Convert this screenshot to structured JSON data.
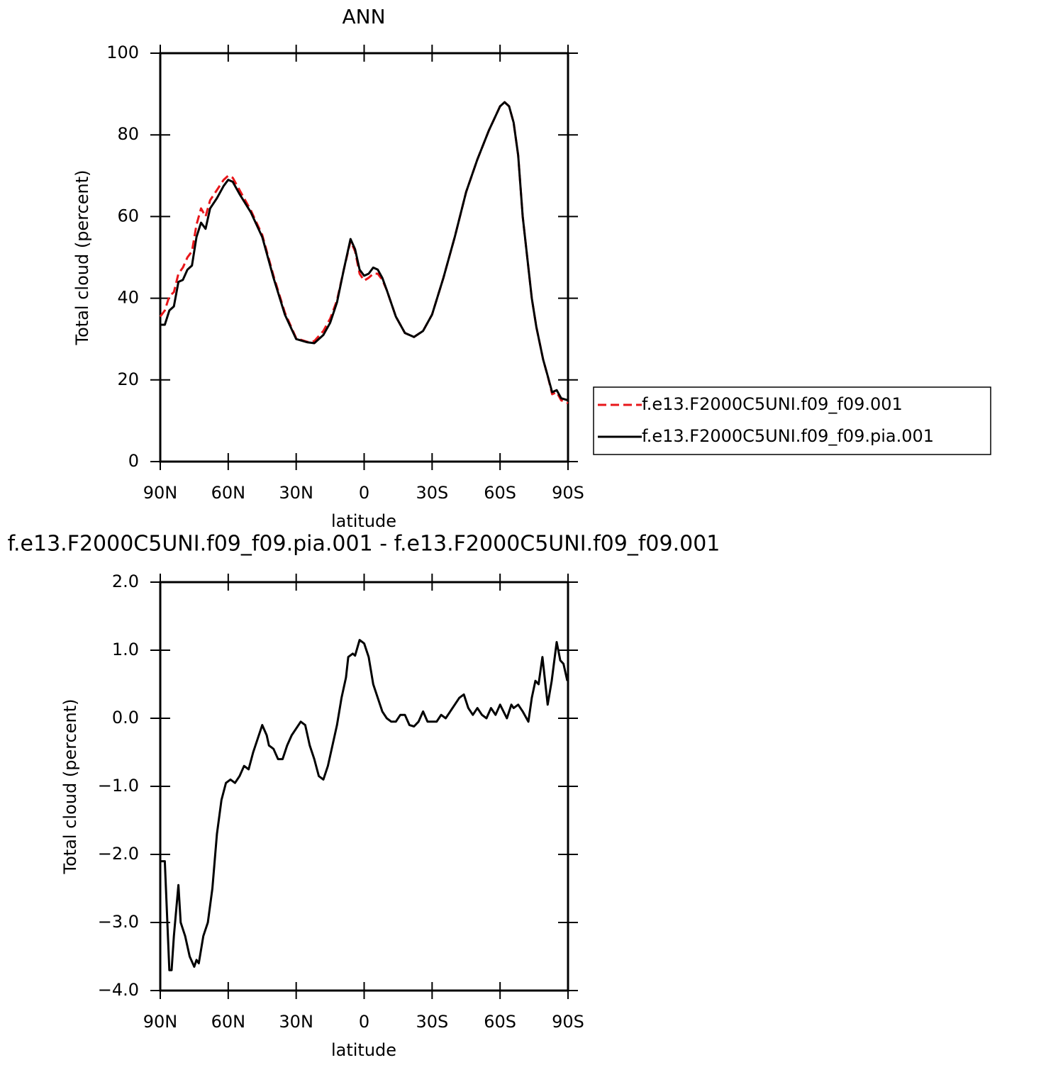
{
  "chart_data": [
    {
      "type": "line",
      "title": "ANN",
      "xlabel": "latitude",
      "ylabel": "Total cloud (percent)",
      "xlim": [
        90,
        -90
      ],
      "ylim": [
        0,
        100
      ],
      "xticks": [
        {
          "value": 90,
          "label": "90N"
        },
        {
          "value": 60,
          "label": "60N"
        },
        {
          "value": 30,
          "label": "30N"
        },
        0,
        {
          "value": -30,
          "label": "30S"
        },
        {
          "value": -60,
          "label": "60S"
        },
        {
          "value": -90,
          "label": "90S"
        }
      ],
      "yticks": [
        0,
        20,
        40,
        60,
        80,
        100
      ],
      "legend": "right",
      "x": [
        90,
        88,
        86,
        84,
        82,
        80,
        78,
        76,
        74,
        72,
        70,
        68,
        65,
        62,
        60,
        58,
        55,
        50,
        45,
        40,
        35,
        30,
        25,
        22,
        18,
        15,
        12,
        9,
        6,
        4,
        2,
        0,
        -2,
        -4,
        -6,
        -8,
        -10,
        -14,
        -18,
        -22,
        -26,
        -30,
        -35,
        -40,
        -45,
        -50,
        -55,
        -60,
        -62,
        -64,
        -66,
        -68,
        -70,
        -72,
        -74,
        -76,
        -79,
        -81,
        -83,
        -85,
        -87,
        -90
      ],
      "series": [
        {
          "name": "f.e13.F2000C5UNI.f09_f09.001",
          "color": "#e8161a",
          "style": "dashed",
          "values": [
            35.5,
            37,
            40.5,
            41.5,
            46,
            47.5,
            50,
            51.5,
            58,
            62,
            60,
            64,
            66.5,
            69,
            70,
            69.5,
            66.5,
            61.5,
            55.5,
            45.5,
            36.5,
            30.2,
            29.3,
            29.5,
            32,
            35,
            39.5,
            47,
            54,
            51.5,
            46,
            44.3,
            45,
            46,
            46,
            44.5,
            42,
            35.5,
            31.5,
            30.5,
            32,
            36,
            45,
            55,
            66,
            74,
            81,
            87,
            88,
            87,
            83,
            75,
            60,
            50,
            40,
            33,
            25,
            21,
            16.5,
            17,
            15,
            14.3
          ]
        },
        {
          "name": "f.e13.F2000C5UNI.f09_f09.pia.001",
          "color": "#000000",
          "style": "solid",
          "values": [
            33.5,
            33.5,
            37,
            38,
            44,
            44.5,
            47,
            48,
            55,
            58.5,
            57,
            62,
            64.5,
            67.5,
            69,
            68.5,
            65.5,
            61,
            55,
            45,
            36,
            30,
            29.2,
            29,
            31,
            34,
            39,
            47,
            54.5,
            52,
            47,
            45.5,
            46,
            47.5,
            47,
            45,
            42,
            35.5,
            31.5,
            30.5,
            32,
            36,
            45,
            55,
            66,
            74,
            81,
            87,
            88,
            87,
            83,
            75,
            60,
            50,
            40,
            33,
            25,
            21,
            17,
            17.5,
            15.5,
            15
          ]
        }
      ]
    },
    {
      "type": "line",
      "title": "f.e13.F2000C5UNI.f09_f09.pia.001 - f.e13.F2000C5UNI.f09_f09.001",
      "xlabel": "latitude",
      "ylabel": "Total cloud (percent)",
      "xlim": [
        90,
        -90
      ],
      "ylim": [
        -4,
        2
      ],
      "xticks": [
        {
          "value": 90,
          "label": "90N"
        },
        {
          "value": 60,
          "label": "60N"
        },
        {
          "value": 30,
          "label": "30N"
        },
        0,
        {
          "value": -30,
          "label": "30S"
        },
        {
          "value": -60,
          "label": "60S"
        },
        {
          "value": -90,
          "label": "90S"
        }
      ],
      "yticks": [
        {
          "value": -4,
          "label": "−4.0"
        },
        {
          "value": -3,
          "label": "−3.0"
        },
        {
          "value": -2,
          "label": "−2.0"
        },
        {
          "value": -1,
          "label": "−1.0"
        },
        {
          "value": 0,
          "label": "0.0"
        },
        {
          "value": 1,
          "label": "1.0"
        },
        {
          "value": 2,
          "label": "2.0"
        }
      ],
      "x": [
        90,
        88,
        86,
        85,
        84,
        82,
        81,
        79,
        77,
        75,
        74,
        73,
        71,
        69,
        67,
        65,
        63,
        61,
        59,
        57,
        55,
        53,
        51,
        49,
        47,
        45,
        43,
        42,
        40,
        38,
        36,
        34,
        32,
        30,
        28,
        26,
        24,
        22,
        20,
        18,
        16,
        14,
        12,
        10,
        8,
        7,
        5,
        4,
        2,
        0,
        -2,
        -4,
        -6,
        -8,
        -10,
        -12,
        -14,
        -16,
        -18,
        -20,
        -22,
        -24,
        -26,
        -28,
        -30,
        -32,
        -34,
        -36,
        -38,
        -40,
        -42,
        -44,
        -46,
        -48,
        -50,
        -52,
        -54,
        -56,
        -58,
        -60,
        -63,
        -65,
        -66,
        -68,
        -70,
        -72.5,
        -74,
        -75.6,
        -77,
        -78.7,
        -81,
        -82.8,
        -85,
        -86.6,
        -88,
        -89.7
      ],
      "series": [
        {
          "name": null,
          "color": "#000000",
          "style": "solid",
          "values": [
            -2.1,
            -2.1,
            -3.7,
            -3.7,
            -3.2,
            -2.45,
            -3.0,
            -3.2,
            -3.5,
            -3.65,
            -3.55,
            -3.6,
            -3.2,
            -3.0,
            -2.5,
            -1.7,
            -1.2,
            -0.95,
            -0.9,
            -0.95,
            -0.85,
            -0.7,
            -0.75,
            -0.5,
            -0.3,
            -0.1,
            -0.25,
            -0.4,
            -0.45,
            -0.6,
            -0.6,
            -0.4,
            -0.25,
            -0.15,
            -0.05,
            -0.1,
            -0.4,
            -0.6,
            -0.85,
            -0.9,
            -0.7,
            -0.4,
            -0.1,
            0.3,
            0.6,
            0.9,
            0.95,
            0.92,
            1.15,
            1.1,
            0.9,
            0.5,
            0.3,
            0.1,
            0.0,
            -0.05,
            -0.05,
            0.05,
            0.05,
            -0.1,
            -0.12,
            -0.05,
            0.1,
            -0.05,
            -0.05,
            -0.05,
            0.05,
            0.0,
            0.1,
            0.2,
            0.3,
            0.35,
            0.15,
            0.05,
            0.15,
            0.05,
            0.0,
            0.15,
            0.05,
            0.2,
            0.0,
            0.2,
            0.15,
            0.2,
            0.1,
            -0.05,
            0.3,
            0.55,
            0.5,
            0.9,
            0.2,
            0.55,
            1.12,
            0.85,
            0.8,
            0.55
          ]
        }
      ]
    }
  ]
}
